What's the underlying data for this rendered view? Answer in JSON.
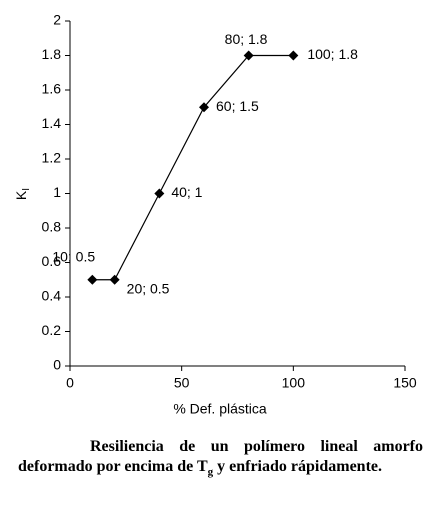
{
  "chart_data": {
    "type": "line",
    "x": [
      10,
      20,
      40,
      60,
      80,
      100
    ],
    "series": [
      {
        "color": "#000000",
        "values": [
          0.5,
          0.5,
          1,
          1.5,
          1.8,
          1.8
        ],
        "value_labels": [
          "10; 0.5",
          "20; 0.5",
          "40; 1",
          "60; 1.5",
          "80; 1.8",
          "100; 1.8"
        ]
      }
    ],
    "xlim": [
      0,
      150
    ],
    "xticks": [
      0,
      50,
      100,
      150
    ],
    "ylim": [
      0,
      2
    ],
    "yticks": [
      0,
      0.2,
      0.4,
      0.6,
      0.8,
      1,
      1.2,
      1.4,
      1.6,
      1.8,
      2
    ],
    "x_label": "% Def. plástica",
    "y_label": "K",
    "y_label_sub": "I",
    "grid": false
  },
  "caption": {
    "parts": [
      "Resiliencia de un polímero lineal amorfo deformado por encima de T",
      "g",
      " y enfriado rápidamente."
    ]
  }
}
